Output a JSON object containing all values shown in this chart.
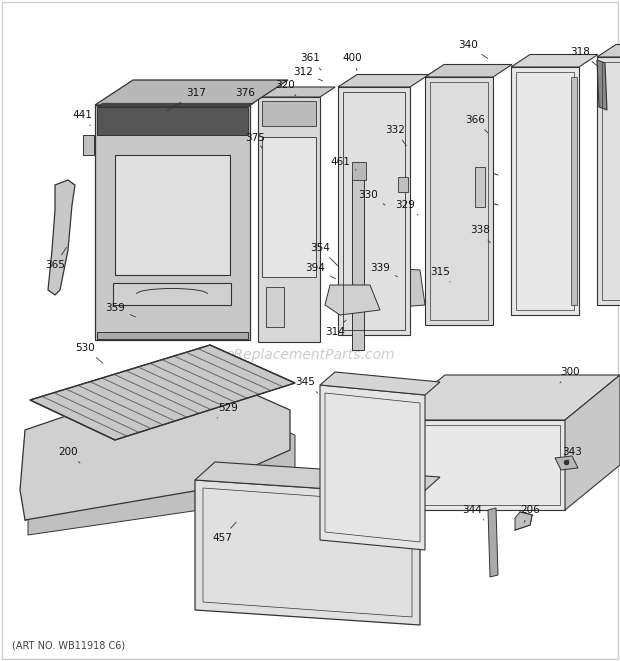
{
  "background_color": "#ffffff",
  "watermark": "eReplacementParts.com",
  "art_no": "(ART NO. WB11918 C6)",
  "fig_width": 6.2,
  "fig_height": 6.61,
  "dpi": 100,
  "line_color": "#333333",
  "fill_light": "#e8e8e8",
  "fill_mid": "#d0d0d0",
  "fill_dark": "#b0b0b0"
}
